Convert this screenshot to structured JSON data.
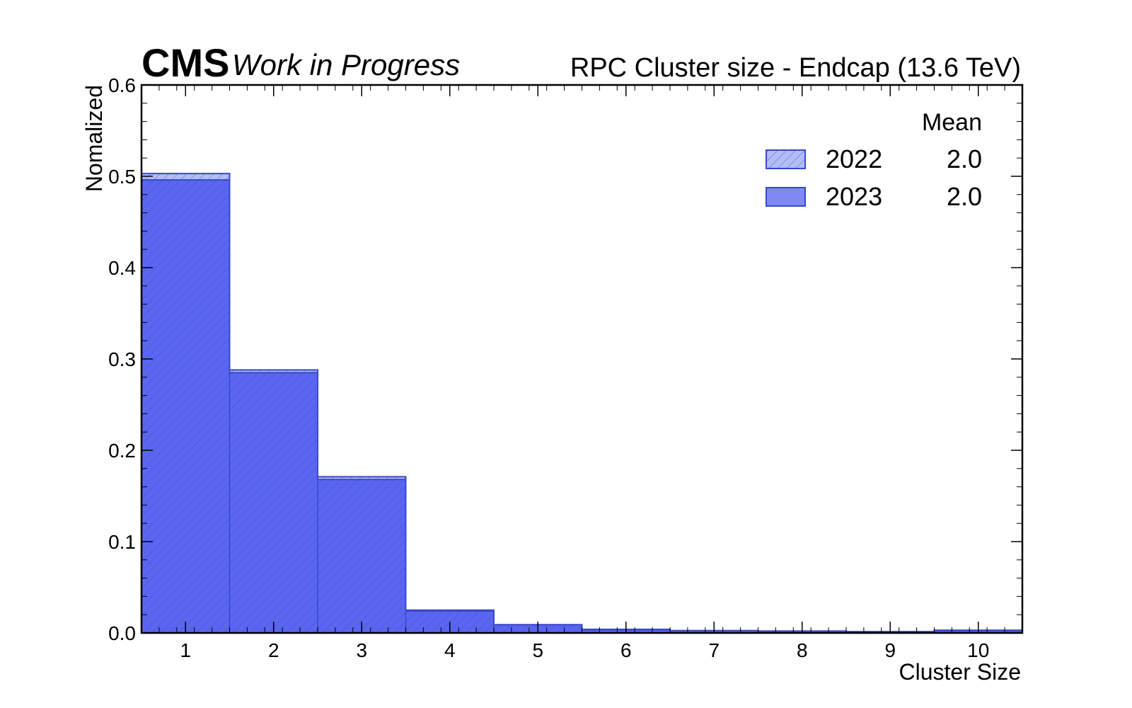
{
  "header": {
    "experiment": "CMS",
    "status": "Work in Progress",
    "title": "RPC Cluster size - Endcap (13.6 TeV)"
  },
  "chart_data": {
    "type": "histogram",
    "xlabel": "Cluster Size",
    "ylabel": "Nomalized",
    "xlim": [
      0.5,
      10.5
    ],
    "ylim": [
      0.0,
      0.6
    ],
    "x_ticks": [
      "1",
      "2",
      "3",
      "4",
      "5",
      "6",
      "7",
      "8",
      "9",
      "10"
    ],
    "y_ticks": [
      "0.0",
      "0.1",
      "0.2",
      "0.3",
      "0.4",
      "0.5",
      "0.6"
    ],
    "bin_centers": [
      1,
      2,
      3,
      4,
      5,
      6,
      7,
      8,
      9,
      10
    ],
    "series": [
      {
        "name": "2022",
        "style": "hatched",
        "fill": "#b3bdf5",
        "edge": "#3848c8",
        "mean": "2.0",
        "values": [
          0.503,
          0.288,
          0.171,
          0.024,
          0.009,
          0.004,
          0.0025,
          0.002,
          0.0015,
          0.003
        ]
      },
      {
        "name": "2023",
        "style": "filled",
        "fill": "#5a66f0",
        "edge": "#3848c8",
        "mean": "2.0",
        "values": [
          0.496,
          0.285,
          0.168,
          0.025,
          0.009,
          0.0035,
          0.0025,
          0.002,
          0.0015,
          0.0025
        ]
      }
    ],
    "legend": {
      "position": "top-right",
      "mean_header": "Mean"
    },
    "grid": false
  }
}
